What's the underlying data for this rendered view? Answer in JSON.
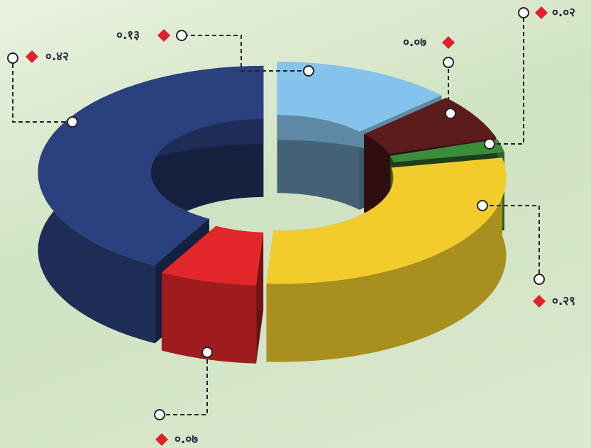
{
  "chart_data": {
    "type": "pie",
    "values": [
      0.13,
      0.07,
      0.02,
      0.29,
      0.07,
      0.42
    ],
    "value_labels": [
      "०.१३",
      "०.०७",
      "०.०२",
      "०.२९",
      "०.०७",
      "०.४२"
    ],
    "colors": [
      "#86c3ec",
      "#5c1c1c",
      "#3c8c3a",
      "#f2cc2a",
      "#e3262a",
      "#2b407e"
    ]
  }
}
